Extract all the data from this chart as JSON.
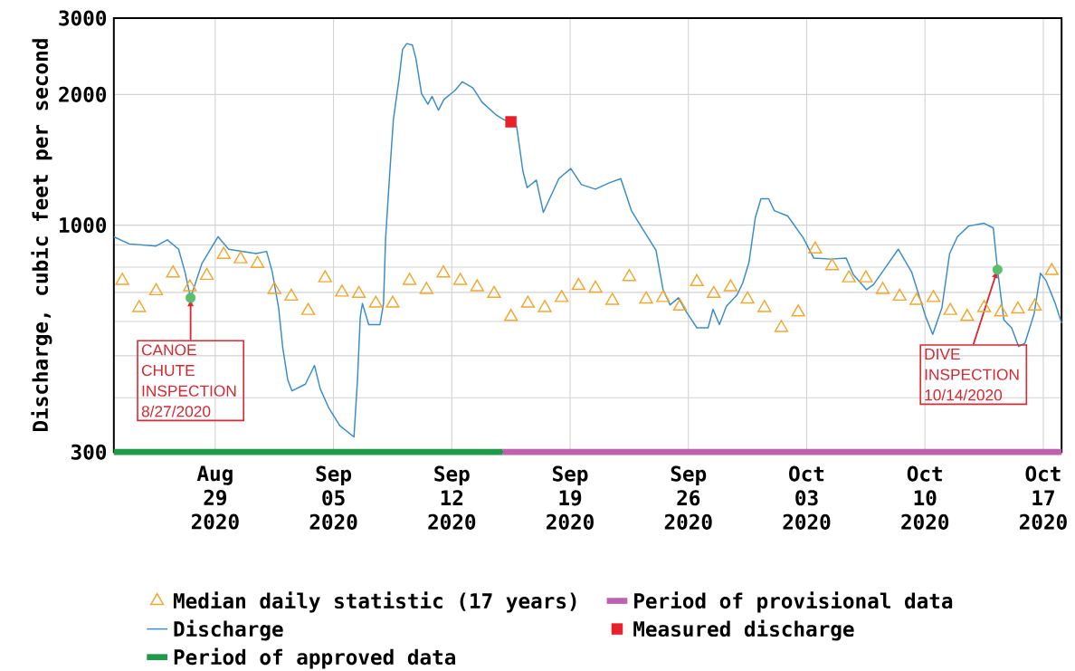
{
  "chart_data": {
    "type": "line",
    "ylabel": "Discharge, cubic feet per second",
    "log": "y",
    "grid": true,
    "legend": "bottom",
    "xlim": [
      "2020-08-23T00:00",
      "2020-10-18T02:00"
    ],
    "xticks": [
      {
        "value": "2020-08-29",
        "label": "Aug 29 2020"
      },
      {
        "value": "2020-09-05",
        "label": "Sep 05 2020"
      },
      {
        "value": "2020-09-12",
        "label": "Sep 12 2020"
      },
      {
        "value": "2020-09-19",
        "label": "Sep 19 2020"
      },
      {
        "value": "2020-09-26",
        "label": "Sep 26 2020"
      },
      {
        "value": "2020-10-03",
        "label": "Oct 03 2020"
      },
      {
        "value": "2020-10-10",
        "label": "Oct 10 2020"
      },
      {
        "value": "2020-10-17",
        "label": "Oct 17 2020"
      }
    ],
    "ylim": [
      300,
      3000
    ],
    "yticks": [
      300,
      {
        "value": 400,
        "label": null
      },
      {
        "value": 500,
        "label": null
      },
      {
        "value": 600,
        "label": null
      },
      {
        "value": 700,
        "label": null
      },
      {
        "value": 800,
        "label": null
      },
      {
        "value": 900,
        "label": null
      },
      1000,
      2000,
      3000
    ],
    "series": [
      {
        "name": "Median daily statistic (17 years)",
        "type": "scatter",
        "marker": "triangle",
        "color": "#f0a830",
        "x": [
          "2020-08-23T12:00",
          "2020-08-24T12:00",
          "2020-08-25T12:00",
          "2020-08-26T12:00",
          "2020-08-27T12:00",
          "2020-08-28T12:00",
          "2020-08-29T12:00",
          "2020-08-30T12:00",
          "2020-08-31T12:00",
          "2020-09-01T12:00",
          "2020-09-02T12:00",
          "2020-09-03T12:00",
          "2020-09-04T12:00",
          "2020-09-05T12:00",
          "2020-09-06T12:00",
          "2020-09-07T12:00",
          "2020-09-08T12:00",
          "2020-09-09T12:00",
          "2020-09-10T12:00",
          "2020-09-11T12:00",
          "2020-09-12T12:00",
          "2020-09-13T12:00",
          "2020-09-14T12:00",
          "2020-09-15T12:00",
          "2020-09-16T12:00",
          "2020-09-17T12:00",
          "2020-09-18T12:00",
          "2020-09-19T12:00",
          "2020-09-20T12:00",
          "2020-09-21T12:00",
          "2020-09-22T12:00",
          "2020-09-23T12:00",
          "2020-09-24T12:00",
          "2020-09-25T12:00",
          "2020-09-26T12:00",
          "2020-09-27T12:00",
          "2020-09-28T12:00",
          "2020-09-29T12:00",
          "2020-09-30T12:00",
          "2020-10-01T12:00",
          "2020-10-02T12:00",
          "2020-10-03T12:00",
          "2020-10-04T12:00",
          "2020-10-05T12:00",
          "2020-10-06T12:00",
          "2020-10-07T12:00",
          "2020-10-08T12:00",
          "2020-10-09T12:00",
          "2020-10-10T12:00",
          "2020-10-11T12:00",
          "2020-10-12T12:00",
          "2020-10-13T12:00",
          "2020-10-14T12:00",
          "2020-10-15T12:00",
          "2020-10-16T12:00",
          "2020-10-17T12:00"
        ],
        "values": [
          745,
          645,
          705,
          775,
          720,
          765,
          855,
          835,
          815,
          710,
          685,
          635,
          755,
          700,
          695,
          660,
          660,
          745,
          710,
          775,
          745,
          720,
          695,
          615,
          660,
          645,
          680,
          725,
          715,
          670,
          760,
          675,
          680,
          650,
          740,
          695,
          720,
          675,
          645,
          580,
          630,
          880,
          805,
          755,
          755,
          710,
          685,
          670,
          680,
          635,
          615,
          645,
          630,
          640,
          650,
          785
        ]
      },
      {
        "name": "Period of provisional data",
        "type": "line",
        "color": "#c060b0",
        "x": [
          "2020-09-15T00:00",
          "2020-10-18T02:00"
        ],
        "values": [
          300,
          300
        ]
      },
      {
        "name": "Discharge",
        "type": "line",
        "color": "#3a8cc8",
        "x": [
          "2020-08-23T00:00",
          "2020-08-23T22:00",
          "2020-08-25T12:00",
          "2020-08-26T04:00",
          "2020-08-26T20:00",
          "2020-08-27T05:00",
          "2020-08-27T13:00",
          "2020-08-28T05:00",
          "2020-08-29T04:00",
          "2020-08-29T19:00",
          "2020-08-31T10:00",
          "2020-09-01T01:00",
          "2020-09-01T09:00",
          "2020-09-01T18:00",
          "2020-09-02T00:00",
          "2020-09-02T07:00",
          "2020-09-02T13:00",
          "2020-09-03T08:00",
          "2020-09-03T21:00",
          "2020-09-04T05:00",
          "2020-09-04T17:00",
          "2020-09-05T09:00",
          "2020-09-06T05:00",
          "2020-09-06T10:00",
          "2020-09-06T14:00",
          "2020-09-06T17:00",
          "2020-09-07T02:00",
          "2020-09-07T18:00",
          "2020-09-07T23:00",
          "2020-09-08T02:00",
          "2020-09-08T08:00",
          "2020-09-08T13:00",
          "2020-09-08T21:00",
          "2020-09-09T02:00",
          "2020-09-09T08:00",
          "2020-09-09T16:00",
          "2020-09-09T21:00",
          "2020-09-10T05:00",
          "2020-09-10T14:00",
          "2020-09-10T20:00",
          "2020-09-11T05:00",
          "2020-09-11T13:00",
          "2020-09-12T04:00",
          "2020-09-12T15:00",
          "2020-09-13T06:00",
          "2020-09-13T19:00",
          "2020-09-14T14:00",
          "2020-09-14T23:00",
          "2020-09-15T20:00",
          "2020-09-16T05:00",
          "2020-09-16T11:00",
          "2020-09-17T00:00",
          "2020-09-17T10:00",
          "2020-09-18T08:00",
          "2020-09-19T01:00",
          "2020-09-19T16:00",
          "2020-09-20T12:00",
          "2020-09-21T07:00",
          "2020-09-22T00:00",
          "2020-09-22T15:00",
          "2020-09-23T07:00",
          "2020-09-24T02:00",
          "2020-09-24T12:00",
          "2020-09-24T22:00",
          "2020-09-25T10:00",
          "2020-09-25T20:00",
          "2020-09-26T12:00",
          "2020-09-27T04:00",
          "2020-09-27T11:00",
          "2020-09-27T20:00",
          "2020-09-28T06:00",
          "2020-09-28T21:00",
          "2020-09-29T05:00",
          "2020-09-29T14:00",
          "2020-09-29T23:00",
          "2020-09-30T07:00",
          "2020-09-30T18:00",
          "2020-10-01T02:00",
          "2020-10-01T21:00",
          "2020-10-02T19:00",
          "2020-10-03T10:00",
          "2020-10-04T10:00",
          "2020-10-05T08:00",
          "2020-10-05T18:00",
          "2020-10-06T13:00",
          "2020-10-06T23:00",
          "2020-10-07T15:00",
          "2020-10-08T10:00",
          "2020-10-09T05:00",
          "2020-10-10T01:00",
          "2020-10-10T11:00",
          "2020-10-11T00:00",
          "2020-10-11T11:00",
          "2020-10-11T22:00",
          "2020-10-12T14:00",
          "2020-10-13T12:00",
          "2020-10-14T01:00",
          "2020-10-14T07:00",
          "2020-10-14T16:00",
          "2020-10-15T03:00",
          "2020-10-15T13:00",
          "2020-10-15T22:00",
          "2020-10-16T11:00",
          "2020-10-16T20:00",
          "2020-10-17T04:00",
          "2020-10-17T17:00",
          "2020-10-18T02:00"
        ],
        "values": [
          940,
          905,
          895,
          925,
          880,
          780,
          680,
          815,
          940,
          880,
          860,
          870,
          780,
          645,
          520,
          440,
          415,
          430,
          475,
          420,
          380,
          345,
          325,
          440,
          615,
          660,
          590,
          590,
          660,
          935,
          1330,
          1750,
          2170,
          2540,
          2620,
          2600,
          2420,
          2010,
          1900,
          1980,
          1840,
          1950,
          2040,
          2140,
          2070,
          1920,
          1800,
          1760,
          1690,
          1330,
          1220,
          1270,
          1070,
          1280,
          1350,
          1240,
          1210,
          1250,
          1280,
          1080,
          980,
          875,
          710,
          655,
          680,
          635,
          580,
          580,
          640,
          590,
          650,
          690,
          735,
          820,
          1040,
          1150,
          1150,
          1080,
          1050,
          935,
          840,
          835,
          840,
          770,
          710,
          730,
          795,
          880,
          780,
          615,
          560,
          645,
          860,
          940,
          995,
          1010,
          985,
          790,
          605,
          580,
          525,
          535,
          625,
          775,
          745,
          660,
          595
        ]
      },
      {
        "name": "Measured discharge",
        "type": "scatter",
        "marker": "square",
        "color": "#e8202a",
        "x": [
          "2020-09-15T12:00"
        ],
        "values": [
          1730
        ]
      },
      {
        "name": "Period of approved data",
        "type": "line",
        "color": "#1f9a48",
        "x": [
          "2020-08-23T00:00",
          "2020-09-15T00:00"
        ],
        "values": [
          300,
          300
        ]
      },
      {
        "type": "scatter",
        "marker": "circle",
        "color": "#5abe6e",
        "x": [
          "2020-08-27T13:00",
          "2020-10-14T07:00"
        ],
        "values": [
          680,
          790
        ]
      }
    ],
    "annotations": [
      {
        "text": "CANOE CHUTE INSPECTION 8/27/2020",
        "x": "2020-08-27T13:00",
        "y": 680
      },
      {
        "text": "DIVE INSPECTION 10/14/2020",
        "x": "2020-10-14T07:00",
        "y": 790
      }
    ]
  }
}
